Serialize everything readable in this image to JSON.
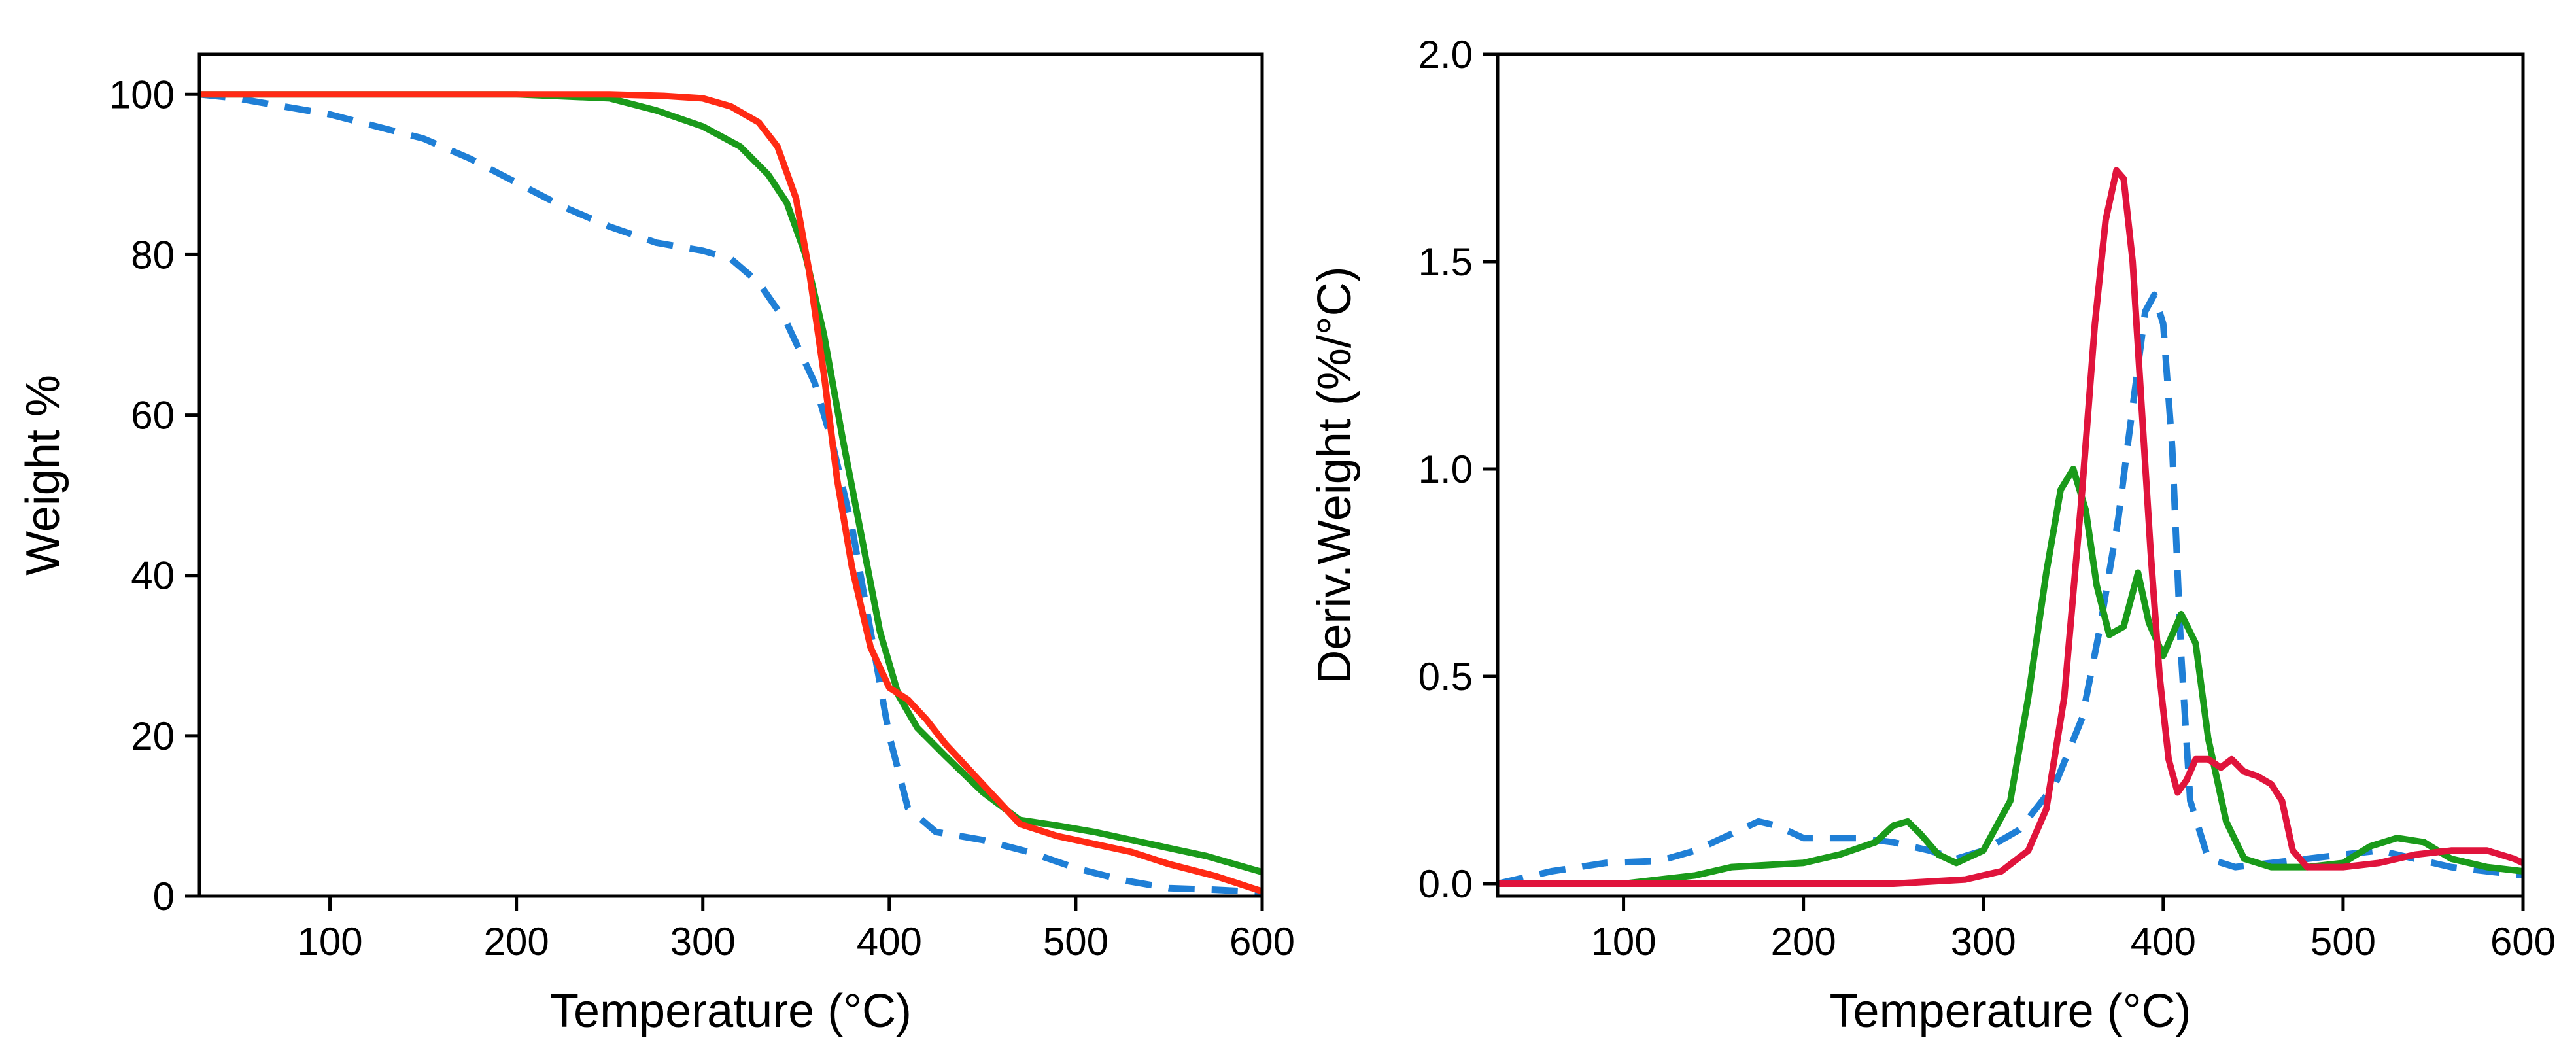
{
  "figure": {
    "panel_count": 2
  },
  "colors": {
    "series1": "#1f7fd6",
    "series2": "#1a9a1a",
    "series3_left": "#ff2a14",
    "series3_right": "#e0143c",
    "axis": "#000000"
  },
  "chart_data": [
    {
      "type": "line",
      "title": "",
      "xlabel": "Temperature (°C)",
      "ylabel": "Weight %",
      "xlim": [
        30,
        600
      ],
      "ylim": [
        0,
        105
      ],
      "xticks": [
        100,
        200,
        300,
        400,
        500,
        600
      ],
      "yticks": [
        0,
        20,
        40,
        60,
        80,
        100
      ],
      "xtick_labels": [
        "100",
        "200",
        "300",
        "400",
        "500",
        "600"
      ],
      "ytick_labels": [
        "0",
        "20",
        "40",
        "60",
        "80",
        "100"
      ],
      "legend": "none",
      "grid": false,
      "series": [
        {
          "name": "series-1",
          "color_key": "series1",
          "dash": "dashed",
          "x": [
            30,
            50,
            75,
            100,
            125,
            150,
            175,
            200,
            225,
            250,
            275,
            300,
            315,
            330,
            345,
            360,
            370,
            380,
            390,
            400,
            410,
            425,
            450,
            475,
            500,
            525,
            550,
            575,
            600
          ],
          "y": [
            100,
            99.5,
            98.5,
            97.5,
            96,
            94.5,
            92,
            89,
            86,
            83.5,
            81.5,
            80.5,
            79.5,
            76.5,
            71.5,
            64,
            56,
            46,
            33,
            20,
            11,
            8,
            7,
            5.5,
            3.5,
            2,
            1,
            0.8,
            0.5
          ]
        },
        {
          "name": "series-2",
          "color_key": "series2",
          "dash": "solid",
          "x": [
            30,
            100,
            150,
            200,
            250,
            275,
            300,
            320,
            335,
            345,
            355,
            365,
            375,
            385,
            395,
            405,
            415,
            430,
            450,
            470,
            490,
            510,
            530,
            550,
            570,
            600
          ],
          "y": [
            100,
            100,
            100,
            100,
            99.5,
            98,
            96,
            93.5,
            90,
            86.5,
            80,
            70,
            57,
            45,
            33,
            25,
            21,
            17.5,
            13,
            9.5,
            8.8,
            8,
            7,
            6,
            5,
            3
          ]
        },
        {
          "name": "series-3",
          "color_key": "series3_left",
          "dash": "solid",
          "x": [
            30,
            100,
            200,
            250,
            280,
            300,
            315,
            330,
            340,
            350,
            357,
            365,
            372,
            380,
            390,
            400,
            410,
            420,
            430,
            450,
            470,
            490,
            510,
            530,
            550,
            575,
            600
          ],
          "y": [
            100,
            100,
            100,
            100,
            99.8,
            99.5,
            98.5,
            96.5,
            93.5,
            87,
            78,
            65,
            52,
            41,
            31,
            26,
            24.5,
            22,
            19,
            14,
            9,
            7.5,
            6.5,
            5.5,
            4,
            2.5,
            0.6
          ]
        }
      ]
    },
    {
      "type": "line",
      "title": "",
      "xlabel": "Temperature (°C)",
      "ylabel": "Deriv.Weight (%/°C)",
      "xlim": [
        30,
        600
      ],
      "ylim": [
        -0.03,
        2.0
      ],
      "xticks": [
        100,
        200,
        300,
        400,
        500,
        600
      ],
      "yticks": [
        0.0,
        0.5,
        1.0,
        1.5,
        2.0
      ],
      "xtick_labels": [
        "100",
        "200",
        "300",
        "400",
        "500",
        "600"
      ],
      "ytick_labels": [
        "0.0",
        "0.5",
        "1.0",
        "1.5",
        "2.0"
      ],
      "legend": "none",
      "grid": false,
      "series": [
        {
          "name": "series-1",
          "color_key": "series1",
          "dash": "dashed",
          "x": [
            30,
            60,
            90,
            120,
            140,
            160,
            175,
            185,
            200,
            230,
            250,
            270,
            285,
            300,
            320,
            340,
            355,
            365,
            375,
            383,
            390,
            395,
            400,
            405,
            410,
            415,
            425,
            440,
            460,
            500,
            520,
            540,
            560,
            580,
            600
          ],
          "y": [
            0.0,
            0.03,
            0.05,
            0.055,
            0.08,
            0.12,
            0.15,
            0.14,
            0.11,
            0.11,
            0.1,
            0.08,
            0.06,
            0.08,
            0.13,
            0.24,
            0.4,
            0.62,
            0.88,
            1.15,
            1.38,
            1.42,
            1.35,
            1.05,
            0.55,
            0.2,
            0.06,
            0.04,
            0.05,
            0.07,
            0.08,
            0.06,
            0.04,
            0.03,
            0.02
          ]
        },
        {
          "name": "series-2",
          "color_key": "series2",
          "dash": "solid",
          "x": [
            30,
            100,
            120,
            140,
            160,
            180,
            200,
            220,
            240,
            250,
            258,
            265,
            275,
            285,
            300,
            315,
            325,
            335,
            343,
            350,
            357,
            363,
            370,
            378,
            386,
            392,
            400,
            410,
            418,
            425,
            435,
            445,
            460,
            480,
            500,
            515,
            530,
            545,
            560,
            580,
            600
          ],
          "y": [
            0.0,
            0.0,
            0.01,
            0.02,
            0.04,
            0.045,
            0.05,
            0.07,
            0.1,
            0.14,
            0.15,
            0.12,
            0.07,
            0.05,
            0.08,
            0.2,
            0.45,
            0.75,
            0.95,
            1.0,
            0.9,
            0.72,
            0.6,
            0.62,
            0.75,
            0.63,
            0.55,
            0.65,
            0.58,
            0.35,
            0.15,
            0.06,
            0.04,
            0.04,
            0.05,
            0.09,
            0.11,
            0.1,
            0.06,
            0.04,
            0.03
          ]
        },
        {
          "name": "series-3",
          "color_key": "series3_right",
          "dash": "solid",
          "x": [
            30,
            250,
            290,
            310,
            325,
            335,
            345,
            355,
            362,
            368,
            374,
            378,
            383,
            388,
            393,
            398,
            403,
            408,
            413,
            418,
            425,
            432,
            438,
            445,
            452,
            460,
            466,
            472,
            480,
            500,
            520,
            540,
            560,
            580,
            595,
            600
          ],
          "y": [
            0.0,
            0.0,
            0.01,
            0.03,
            0.08,
            0.18,
            0.45,
            0.95,
            1.35,
            1.6,
            1.72,
            1.7,
            1.5,
            1.15,
            0.8,
            0.5,
            0.3,
            0.22,
            0.25,
            0.3,
            0.3,
            0.28,
            0.3,
            0.27,
            0.26,
            0.24,
            0.2,
            0.08,
            0.04,
            0.04,
            0.05,
            0.07,
            0.08,
            0.08,
            0.06,
            0.05
          ]
        }
      ]
    }
  ]
}
